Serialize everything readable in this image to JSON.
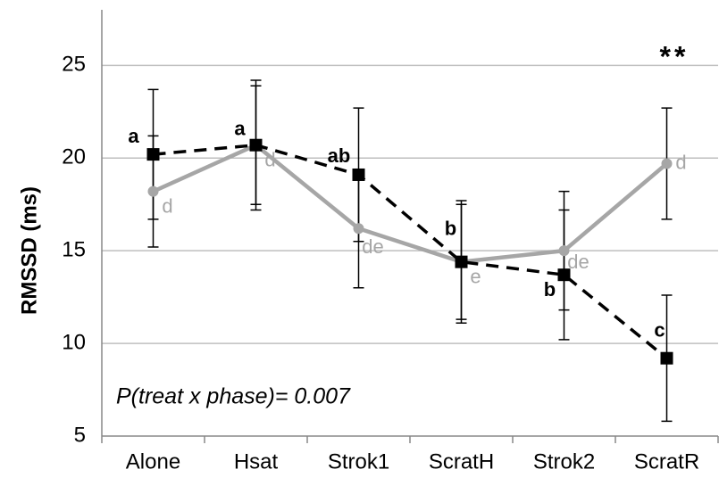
{
  "chart_data": {
    "type": "line",
    "y_label": "RMSSD (ms)",
    "categories": [
      "Alone",
      "Hsat",
      "Strok1",
      "ScratH",
      "Strok2",
      "ScratR"
    ],
    "series": [
      {
        "color": "#a6a6a6",
        "dash": false,
        "values": [
          18.2,
          20.7,
          16.2,
          14.4,
          15.0,
          19.7
        ],
        "errors": [
          3.0,
          3.2,
          3.2,
          3.1,
          3.2,
          3.0
        ],
        "labels": [
          "d",
          "d",
          "de",
          "e",
          "de",
          "d"
        ]
      },
      {
        "color": "#000000",
        "dash": true,
        "values": [
          20.2,
          20.7,
          19.1,
          14.4,
          13.7,
          9.2
        ],
        "errors": [
          3.5,
          3.5,
          3.6,
          3.3,
          3.5,
          3.4
        ],
        "labels": [
          "a",
          "a",
          "ab",
          "b",
          "b",
          "c"
        ]
      }
    ],
    "ylim": [
      5,
      28
    ],
    "yticks": [
      5,
      10,
      15,
      20,
      25
    ],
    "grid": true,
    "annotations": [
      "**",
      "P(treat x phase)= 0.007"
    ]
  }
}
